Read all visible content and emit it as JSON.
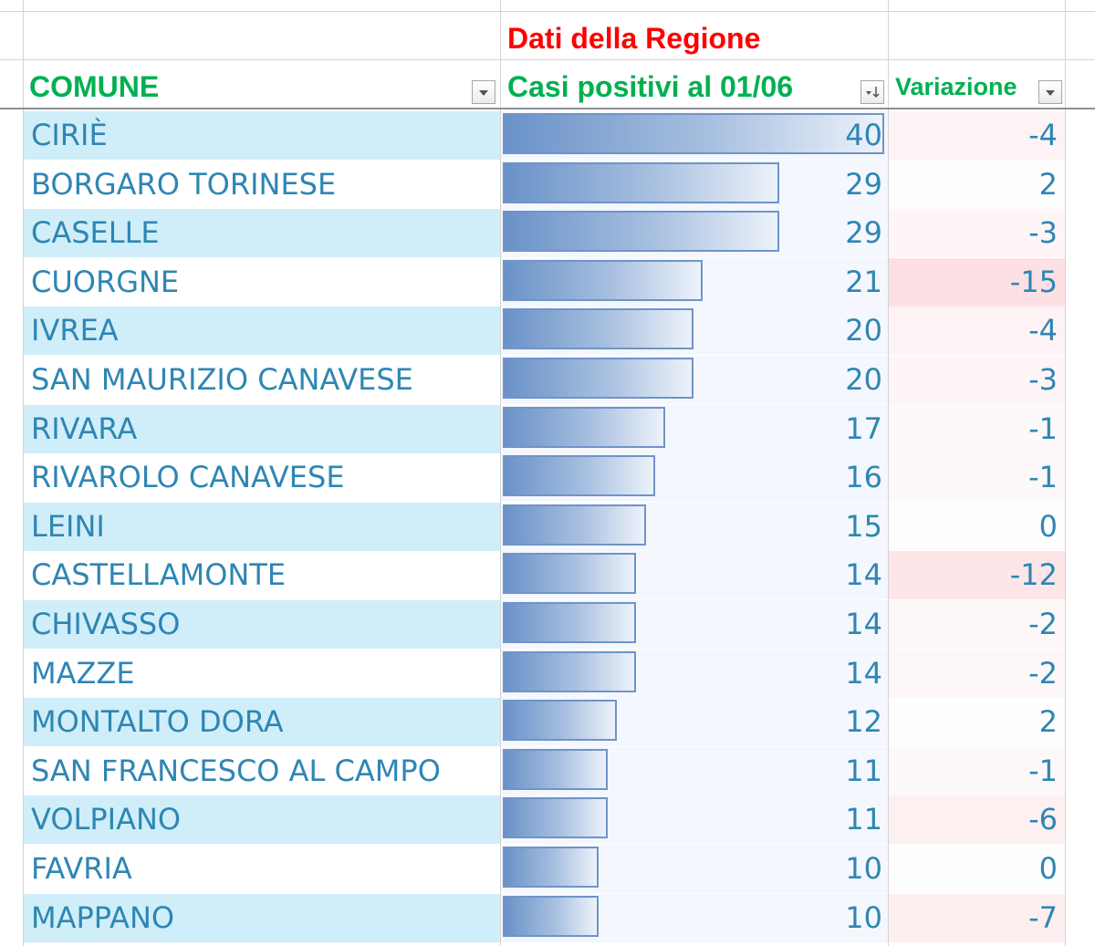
{
  "title": "Dati della Regione",
  "headers": {
    "comune": "COMUNE",
    "casi": "Casi positivi al 01/06",
    "variazione": "Variazione"
  },
  "colors": {
    "title": "#ff0000",
    "header": "#00b050",
    "text": "#2e86b3",
    "band": "#cfeef9",
    "bar": "#6a92c8"
  },
  "icons": {
    "comune_filter": "dropdown-arrow-icon",
    "casi_filter": "sort-descending-icon",
    "variazione_filter": "dropdown-arrow-icon"
  },
  "chart_data": {
    "type": "table",
    "data_bars_max": 40,
    "columns": [
      "COMUNE",
      "Casi positivi al 01/06",
      "Variazione"
    ],
    "rows": [
      {
        "comune": "CIRIÈ",
        "casi": 40,
        "variazione": -4
      },
      {
        "comune": "BORGARO TORINESE",
        "casi": 29,
        "variazione": 2
      },
      {
        "comune": "CASELLE",
        "casi": 29,
        "variazione": -3
      },
      {
        "comune": "CUORGNE",
        "casi": 21,
        "variazione": -15
      },
      {
        "comune": "IVREA",
        "casi": 20,
        "variazione": -4
      },
      {
        "comune": "SAN MAURIZIO CANAVESE",
        "casi": 20,
        "variazione": -3
      },
      {
        "comune": "RIVARA",
        "casi": 17,
        "variazione": -1
      },
      {
        "comune": "RIVAROLO CANAVESE",
        "casi": 16,
        "variazione": -1
      },
      {
        "comune": "LEINI",
        "casi": 15,
        "variazione": 0
      },
      {
        "comune": "CASTELLAMONTE",
        "casi": 14,
        "variazione": -12
      },
      {
        "comune": "CHIVASSO",
        "casi": 14,
        "variazione": -2
      },
      {
        "comune": "MAZZE",
        "casi": 14,
        "variazione": -2
      },
      {
        "comune": "MONTALTO DORA",
        "casi": 12,
        "variazione": 2
      },
      {
        "comune": "SAN FRANCESCO AL CAMPO",
        "casi": 11,
        "variazione": -1
      },
      {
        "comune": "VOLPIANO",
        "casi": 11,
        "variazione": -6
      },
      {
        "comune": "FAVRIA",
        "casi": 10,
        "variazione": 0
      },
      {
        "comune": "MAPPANO",
        "casi": 10,
        "variazione": -7
      }
    ]
  }
}
